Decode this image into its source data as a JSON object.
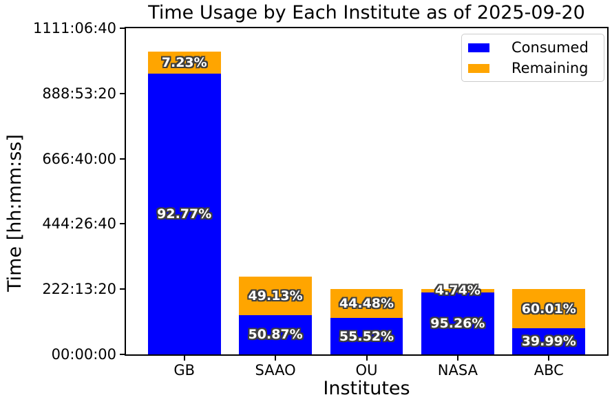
{
  "title": "Time Usage by Each Institute as of 2025-09-20",
  "axes": {
    "xlabel": "Institutes",
    "ylabel": "Time [hh:mm:ss]"
  },
  "legend": {
    "position": "upper right",
    "items": [
      {
        "label": "Consumed",
        "color": "#0000ff",
        "swatch": "consumed-swatch"
      },
      {
        "label": "Remaining",
        "color": "#ffa500",
        "swatch": "remaining-swatch"
      }
    ]
  },
  "colors": {
    "consumed": "#0000ff",
    "remaining": "#ffa500",
    "background": "#ffffff",
    "axis_line": "#000000",
    "bar_label_text": "#ffffff",
    "bar_label_outline": "#3f3f3f",
    "legend_border": "#cccccc"
  },
  "chart_data": {
    "type": "bar",
    "stacked": true,
    "title": "Time Usage by Each Institute as of 2025-09-20",
    "xlabel": "Institutes",
    "ylabel": "Time [hh:mm:ss]",
    "categories": [
      "GB",
      "SAAO",
      "OU",
      "NASA",
      "ABC"
    ],
    "series": [
      {
        "name": "Consumed",
        "color": "#0000ff",
        "pct": [
          92.77,
          50.87,
          55.52,
          95.26,
          39.99
        ],
        "labels": [
          "92.77%",
          "50.87%",
          "55.52%",
          "95.26%",
          "39.99%"
        ]
      },
      {
        "name": "Remaining",
        "color": "#ffa500",
        "pct": [
          7.23,
          49.13,
          44.48,
          4.74,
          60.01
        ],
        "labels": [
          "7.23%",
          "49.13%",
          "44.48%",
          "4.74%",
          "60.01%"
        ]
      }
    ],
    "totals_seconds_est": [
      3710000,
      950000,
      800000,
      800000,
      800000
    ],
    "ylim_seconds": [
      0,
      4000000
    ],
    "yticks": [
      {
        "seconds": 0,
        "label": "00:00:00"
      },
      {
        "seconds": 800000,
        "label": "222:13:20"
      },
      {
        "seconds": 1600000,
        "label": "444:26:40"
      },
      {
        "seconds": 2400000,
        "label": "666:40:00"
      },
      {
        "seconds": 3200000,
        "label": "888:53:20"
      },
      {
        "seconds": 4000000,
        "label": "1111:06:40"
      }
    ],
    "grid": false,
    "legend_position": "upper right"
  }
}
